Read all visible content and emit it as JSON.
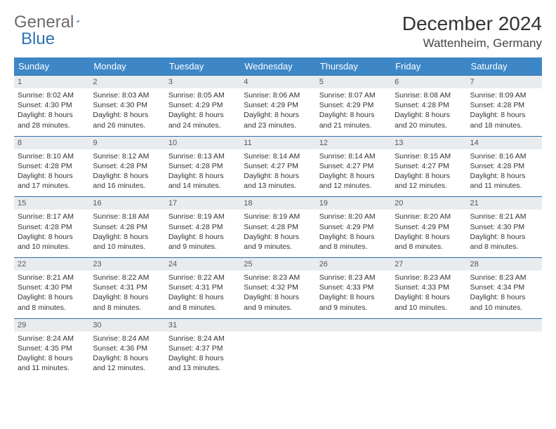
{
  "logo": {
    "part1": "General",
    "part2": "Blue"
  },
  "title": "December 2024",
  "location": "Wattenheim, Germany",
  "colors": {
    "header_bg": "#3d87c7",
    "row_border": "#2f6fa8",
    "daynum_bg": "#e9ecef",
    "logo_blue": "#2f73b7"
  },
  "weekdays": [
    "Sunday",
    "Monday",
    "Tuesday",
    "Wednesday",
    "Thursday",
    "Friday",
    "Saturday"
  ],
  "weeks": [
    [
      {
        "n": "1",
        "sunrise": "8:02 AM",
        "sunset": "4:30 PM",
        "dl": "8 hours and 28 minutes."
      },
      {
        "n": "2",
        "sunrise": "8:03 AM",
        "sunset": "4:30 PM",
        "dl": "8 hours and 26 minutes."
      },
      {
        "n": "3",
        "sunrise": "8:05 AM",
        "sunset": "4:29 PM",
        "dl": "8 hours and 24 minutes."
      },
      {
        "n": "4",
        "sunrise": "8:06 AM",
        "sunset": "4:29 PM",
        "dl": "8 hours and 23 minutes."
      },
      {
        "n": "5",
        "sunrise": "8:07 AM",
        "sunset": "4:29 PM",
        "dl": "8 hours and 21 minutes."
      },
      {
        "n": "6",
        "sunrise": "8:08 AM",
        "sunset": "4:28 PM",
        "dl": "8 hours and 20 minutes."
      },
      {
        "n": "7",
        "sunrise": "8:09 AM",
        "sunset": "4:28 PM",
        "dl": "8 hours and 18 minutes."
      }
    ],
    [
      {
        "n": "8",
        "sunrise": "8:10 AM",
        "sunset": "4:28 PM",
        "dl": "8 hours and 17 minutes."
      },
      {
        "n": "9",
        "sunrise": "8:12 AM",
        "sunset": "4:28 PM",
        "dl": "8 hours and 16 minutes."
      },
      {
        "n": "10",
        "sunrise": "8:13 AM",
        "sunset": "4:28 PM",
        "dl": "8 hours and 14 minutes."
      },
      {
        "n": "11",
        "sunrise": "8:14 AM",
        "sunset": "4:27 PM",
        "dl": "8 hours and 13 minutes."
      },
      {
        "n": "12",
        "sunrise": "8:14 AM",
        "sunset": "4:27 PM",
        "dl": "8 hours and 12 minutes."
      },
      {
        "n": "13",
        "sunrise": "8:15 AM",
        "sunset": "4:27 PM",
        "dl": "8 hours and 12 minutes."
      },
      {
        "n": "14",
        "sunrise": "8:16 AM",
        "sunset": "4:28 PM",
        "dl": "8 hours and 11 minutes."
      }
    ],
    [
      {
        "n": "15",
        "sunrise": "8:17 AM",
        "sunset": "4:28 PM",
        "dl": "8 hours and 10 minutes."
      },
      {
        "n": "16",
        "sunrise": "8:18 AM",
        "sunset": "4:28 PM",
        "dl": "8 hours and 10 minutes."
      },
      {
        "n": "17",
        "sunrise": "8:19 AM",
        "sunset": "4:28 PM",
        "dl": "8 hours and 9 minutes."
      },
      {
        "n": "18",
        "sunrise": "8:19 AM",
        "sunset": "4:28 PM",
        "dl": "8 hours and 9 minutes."
      },
      {
        "n": "19",
        "sunrise": "8:20 AM",
        "sunset": "4:29 PM",
        "dl": "8 hours and 8 minutes."
      },
      {
        "n": "20",
        "sunrise": "8:20 AM",
        "sunset": "4:29 PM",
        "dl": "8 hours and 8 minutes."
      },
      {
        "n": "21",
        "sunrise": "8:21 AM",
        "sunset": "4:30 PM",
        "dl": "8 hours and 8 minutes."
      }
    ],
    [
      {
        "n": "22",
        "sunrise": "8:21 AM",
        "sunset": "4:30 PM",
        "dl": "8 hours and 8 minutes."
      },
      {
        "n": "23",
        "sunrise": "8:22 AM",
        "sunset": "4:31 PM",
        "dl": "8 hours and 8 minutes."
      },
      {
        "n": "24",
        "sunrise": "8:22 AM",
        "sunset": "4:31 PM",
        "dl": "8 hours and 8 minutes."
      },
      {
        "n": "25",
        "sunrise": "8:23 AM",
        "sunset": "4:32 PM",
        "dl": "8 hours and 9 minutes."
      },
      {
        "n": "26",
        "sunrise": "8:23 AM",
        "sunset": "4:33 PM",
        "dl": "8 hours and 9 minutes."
      },
      {
        "n": "27",
        "sunrise": "8:23 AM",
        "sunset": "4:33 PM",
        "dl": "8 hours and 10 minutes."
      },
      {
        "n": "28",
        "sunrise": "8:23 AM",
        "sunset": "4:34 PM",
        "dl": "8 hours and 10 minutes."
      }
    ],
    [
      {
        "n": "29",
        "sunrise": "8:24 AM",
        "sunset": "4:35 PM",
        "dl": "8 hours and 11 minutes."
      },
      {
        "n": "30",
        "sunrise": "8:24 AM",
        "sunset": "4:36 PM",
        "dl": "8 hours and 12 minutes."
      },
      {
        "n": "31",
        "sunrise": "8:24 AM",
        "sunset": "4:37 PM",
        "dl": "8 hours and 13 minutes."
      },
      null,
      null,
      null,
      null
    ]
  ],
  "labels": {
    "sunrise": "Sunrise: ",
    "sunset": "Sunset: ",
    "daylight": "Daylight: "
  }
}
